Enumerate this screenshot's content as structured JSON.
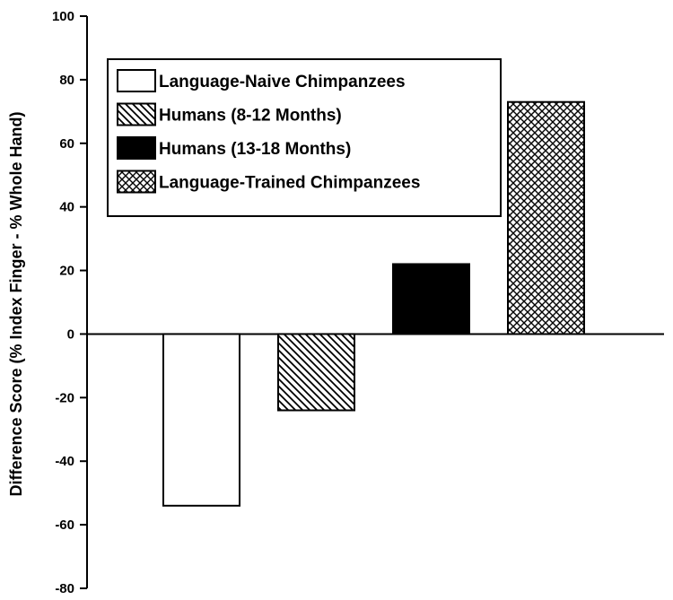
{
  "chart_data": {
    "type": "bar",
    "title": "",
    "xlabel": "",
    "ylabel": "Difference Score (% Index Finger - % Whole Hand)",
    "ylim": [
      -80,
      100
    ],
    "yticks": [
      "100",
      "80",
      "60",
      "40",
      "20",
      "0",
      "-20",
      "-40",
      "-60",
      "-80"
    ],
    "grid": false,
    "legend_position": "top-left",
    "series": [
      {
        "name": "Language-Naive Chimpanzees",
        "value": -54,
        "pattern": "none",
        "color": "#ffffff"
      },
      {
        "name": "Humans (8-12 Months)",
        "value": -24,
        "pattern": "diagonal",
        "color": "#000000"
      },
      {
        "name": "Humans (13-18 Months)",
        "value": 22,
        "pattern": "solid",
        "color": "#000000"
      },
      {
        "name": "Language-Trained Chimpanzees",
        "value": 73,
        "pattern": "crosshatch",
        "color": "#000000"
      }
    ]
  }
}
